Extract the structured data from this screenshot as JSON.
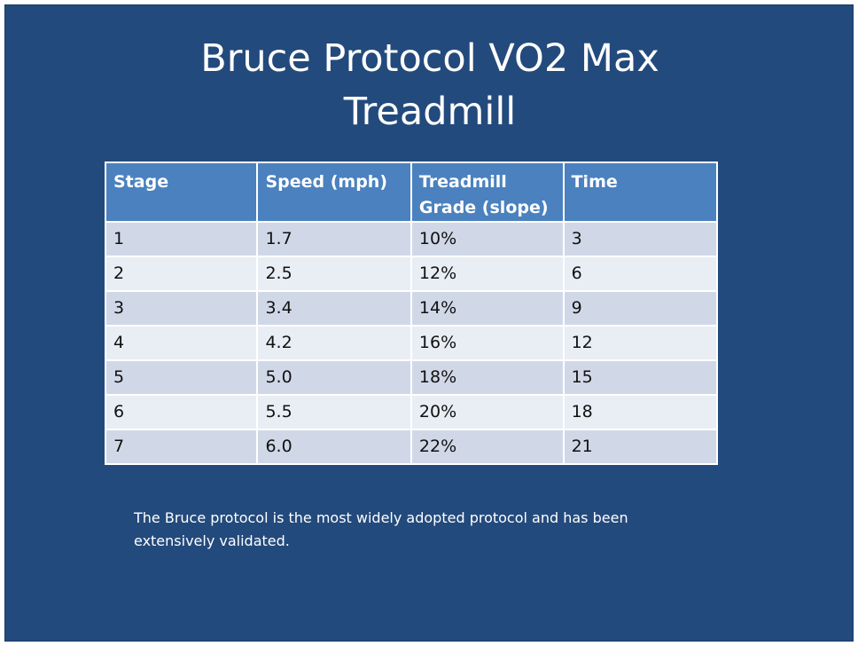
{
  "slide": {
    "title_line1": "Bruce Protocol VO2 Max",
    "title_line2": "Treadmill",
    "table": {
      "headers": [
        "Stage",
        "Speed (mph)",
        "Treadmill Grade (slope)",
        "Time"
      ],
      "rows": [
        [
          "1",
          "1.7",
          "10%",
          "3"
        ],
        [
          "2",
          "2.5",
          "12%",
          "6"
        ],
        [
          "3",
          "3.4",
          "14%",
          "9"
        ],
        [
          "4",
          "4.2",
          "16%",
          "12"
        ],
        [
          "5",
          "5.0",
          "18%",
          "15"
        ],
        [
          "6",
          "5.5",
          "20%",
          "18"
        ],
        [
          "7",
          "6.0",
          "22%",
          "21"
        ]
      ]
    },
    "note": "The Bruce protocol is the most widely adopted protocol and has been extensively validated.",
    "colors": {
      "background": "#234a7c",
      "header_fill": "#4b81be",
      "row_odd": "#d0d8e8",
      "row_even": "#e9edf4"
    }
  }
}
